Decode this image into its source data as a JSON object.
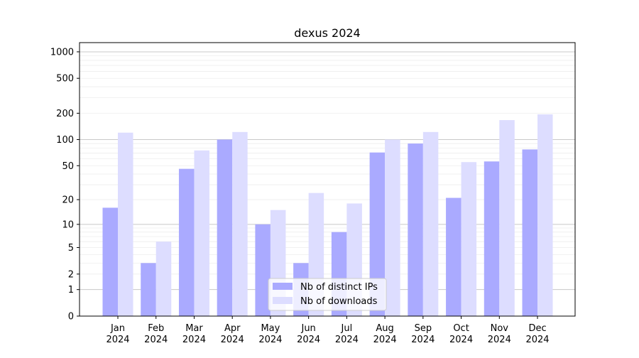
{
  "chart_data": {
    "type": "bar",
    "title": "dexus 2024",
    "xlabel": "",
    "ylabel": "",
    "yscale": "symlog (log10(1+y))",
    "ylim": [
      0,
      1200
    ],
    "yticks": [
      0,
      1,
      2,
      5,
      10,
      20,
      50,
      100,
      200,
      500,
      1000
    ],
    "grid": true,
    "legend_position": "lower-center",
    "categories": [
      "Jan\n2024",
      "Feb\n2024",
      "Mar\n2024",
      "Apr\n2024",
      "May\n2024",
      "Jun\n2024",
      "Jul\n2024",
      "Aug\n2024",
      "Sep\n2024",
      "Oct\n2024",
      "Nov\n2024",
      "Dec\n2024"
    ],
    "series": [
      {
        "name": "Nb of distinct IPs",
        "color": "#aaaaff",
        "values": [
          16,
          3,
          46,
          100,
          10,
          3,
          8,
          71,
          90,
          21,
          56,
          77
        ]
      },
      {
        "name": "Nb of downloads",
        "color": "#ddddff",
        "values": [
          120,
          6,
          75,
          122,
          15,
          24,
          18,
          100,
          122,
          55,
          167,
          194
        ]
      }
    ]
  }
}
